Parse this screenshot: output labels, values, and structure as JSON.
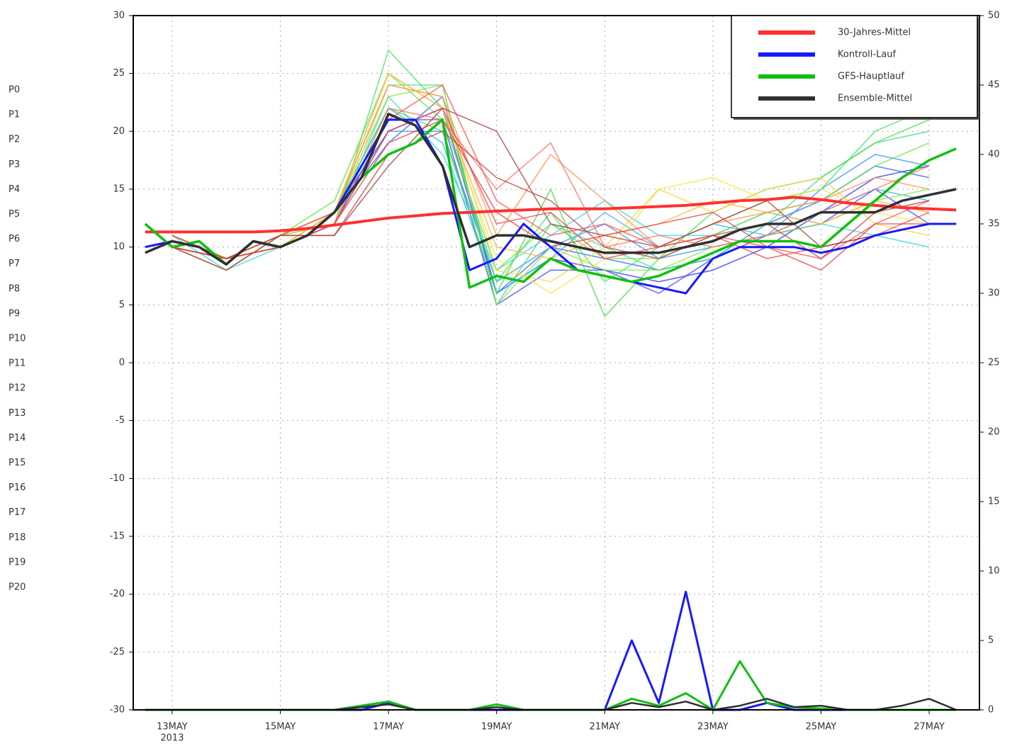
{
  "chart_data": {
    "type": "line",
    "x": [
      -0.5,
      0,
      0.5,
      1,
      1.5,
      2,
      2.5,
      3,
      3.5,
      4,
      4.5,
      5,
      5.5,
      6,
      6.5,
      7,
      7.5,
      8,
      8.5,
      9,
      9.5,
      10,
      10.5,
      11,
      11.5,
      12,
      12.5,
      13,
      13.5,
      14,
      14.5
    ],
    "xlim": [
      -0.72,
      14.93
    ],
    "xticks": [
      {
        "value": 0,
        "label": "13MAY",
        "sublabel": "2013"
      },
      {
        "value": 2,
        "label": "15MAY"
      },
      {
        "value": 4,
        "label": "17MAY"
      },
      {
        "value": 6,
        "label": "19MAY"
      },
      {
        "value": 8,
        "label": "21MAY"
      },
      {
        "value": 10,
        "label": "23MAY"
      },
      {
        "value": 12,
        "label": "25MAY"
      },
      {
        "value": 14,
        "label": "27MAY"
      }
    ],
    "ylim": [
      -30,
      30
    ],
    "yticks": [
      -30,
      -25,
      -20,
      -15,
      -10,
      -5,
      0,
      5,
      10,
      15,
      20,
      25,
      30
    ],
    "y2lim": [
      0,
      50
    ],
    "y2ticks": [
      0,
      5,
      10,
      15,
      20,
      25,
      30,
      35,
      40,
      45,
      50
    ],
    "grid": true,
    "legend": "upper right",
    "series": [
      {
        "name": "30-Jahres-Mittel",
        "color": "#ff3030",
        "width": 4,
        "values": [
          11.3,
          11.3,
          11.3,
          11.3,
          11.3,
          11.4,
          11.6,
          11.9,
          12.2,
          12.5,
          12.7,
          12.9,
          13.0,
          13.1,
          13.2,
          13.3,
          13.3,
          13.3,
          13.4,
          13.5,
          13.6,
          13.8,
          14.0,
          14.1,
          14.3,
          14.1,
          13.8,
          13.6,
          13.4,
          13.3,
          13.2
        ]
      },
      {
        "name": "Kontroll-Lauf",
        "color": "#1818ff",
        "width": 3,
        "values": [
          10,
          10.5,
          10,
          8.5,
          10.5,
          10,
          11,
          13,
          17,
          21,
          21,
          17,
          8,
          9,
          12,
          10,
          8,
          7.5,
          7,
          6.5,
          6,
          9,
          10,
          10,
          10,
          9.5,
          10,
          11,
          11.5,
          12,
          12
        ]
      },
      {
        "name": "GFS-Hauptlauf",
        "color": "#10c010",
        "width": 3.5,
        "values": [
          12,
          10,
          10.5,
          8.5,
          10.5,
          10,
          11,
          13,
          16,
          18,
          19,
          21,
          6.5,
          7.5,
          7,
          9,
          8,
          7.5,
          7,
          7.5,
          8.5,
          9.5,
          10.5,
          10.5,
          10.5,
          10,
          12,
          14,
          16,
          17.5,
          18.5
        ]
      },
      {
        "name": "Ensemble-Mittel",
        "color": "#303030",
        "width": 3.5,
        "values": [
          9.5,
          10.5,
          10,
          8.5,
          10.5,
          10,
          11,
          13,
          16,
          21.5,
          20.5,
          17,
          10,
          11,
          11,
          10.5,
          10,
          9.5,
          9.5,
          9.5,
          10,
          10.5,
          11.5,
          12,
          12,
          13,
          13,
          13,
          14,
          14.5,
          15
        ]
      },
      {
        "color": "#1818ff",
        "width": 3,
        "axis": "y2",
        "values": [
          0,
          0,
          0,
          0,
          0,
          0,
          0,
          0,
          0,
          0.5,
          0,
          0,
          0,
          0,
          0,
          0,
          0,
          0,
          5,
          0.5,
          8.5,
          0,
          0,
          0.5,
          0,
          0,
          0,
          0,
          0,
          0,
          0
        ]
      },
      {
        "color": "#10c010",
        "width": 3,
        "axis": "y2",
        "values": [
          0,
          0,
          0,
          0,
          0,
          0,
          0,
          0,
          0.3,
          0.6,
          0,
          0,
          0,
          0.4,
          0,
          0,
          0,
          0,
          0.8,
          0.3,
          1.2,
          0,
          3.5,
          0.5,
          0.2,
          0.1,
          0,
          0,
          0,
          0,
          0
        ]
      },
      {
        "color": "#303030",
        "width": 2.5,
        "axis": "y2",
        "values": [
          0,
          0,
          0,
          0,
          0,
          0,
          0,
          0,
          0.2,
          0.4,
          0,
          0,
          0,
          0.2,
          0,
          0,
          0,
          0,
          0.5,
          0.2,
          0.6,
          0,
          0.3,
          0.8,
          0.2,
          0.3,
          0,
          0,
          0.3,
          0.8,
          0
        ]
      }
    ],
    "members": {
      "x": [
        0,
        1,
        2,
        3,
        4,
        5,
        6,
        7,
        8,
        9,
        10,
        11,
        12,
        13,
        14
      ],
      "series": [
        {
          "name": "P0",
          "color": "#3030ff",
          "values": [
            10,
            9,
            11,
            13,
            20,
            22,
            6,
            9,
            8,
            7,
            8,
            10,
            13,
            16,
            17
          ]
        },
        {
          "name": "P1",
          "color": "#4040ff",
          "values": [
            10,
            9,
            10,
            12,
            21,
            21,
            5,
            8,
            8,
            6,
            9,
            11,
            12,
            15,
            12
          ]
        },
        {
          "name": "P2",
          "color": "#3060ff",
          "values": [
            11,
            9,
            10,
            13,
            19,
            23,
            6,
            10,
            9,
            8,
            9,
            12,
            14,
            17,
            16
          ]
        },
        {
          "name": "P3",
          "color": "#3090ff",
          "values": [
            10,
            9,
            11,
            12,
            20,
            20,
            7,
            10,
            12,
            9,
            10,
            11,
            15,
            18,
            17
          ]
        },
        {
          "name": "P4",
          "color": "#30b0ff",
          "values": [
            10,
            9,
            10,
            13,
            22,
            19,
            6,
            9,
            13,
            10,
            12,
            11,
            13,
            15,
            14
          ]
        },
        {
          "name": "P5",
          "color": "#30d8e0",
          "values": [
            11,
            8,
            10,
            12,
            23,
            18,
            8,
            11,
            14,
            11,
            11,
            13,
            12,
            11,
            10
          ]
        },
        {
          "name": "P6",
          "color": "#40d890",
          "values": [
            11,
            9,
            11,
            13,
            24,
            24,
            5,
            12,
            10,
            8,
            9,
            12,
            16,
            19,
            20
          ]
        },
        {
          "name": "P7",
          "color": "#40e060",
          "values": [
            10,
            8,
            11,
            12,
            27,
            22,
            7,
            13,
            7,
            10,
            12,
            14,
            15,
            20,
            22
          ]
        },
        {
          "name": "P8",
          "color": "#40e040",
          "values": [
            11,
            9,
            10,
            13,
            22,
            20,
            6,
            15,
            4,
            9,
            13,
            15,
            16,
            19,
            21
          ]
        },
        {
          "name": "P9",
          "color": "#60e040",
          "values": [
            10,
            9,
            11,
            14,
            25,
            21,
            8,
            12,
            9,
            9,
            11,
            13,
            14,
            17,
            19
          ]
        },
        {
          "name": "P10",
          "color": "#80e840",
          "values": [
            11,
            9,
            10,
            13,
            23,
            24,
            5,
            10,
            8,
            8,
            10,
            11,
            12,
            14,
            15
          ]
        },
        {
          "name": "P11",
          "color": "#f0e840",
          "values": [
            10,
            9,
            10,
            13,
            25,
            22,
            9,
            6,
            9,
            15,
            16,
            14,
            15,
            13,
            12
          ]
        },
        {
          "name": "P12",
          "color": "#ffd040",
          "values": [
            11,
            9,
            11,
            12,
            24,
            23,
            8,
            7,
            10,
            15,
            13,
            15,
            16,
            12,
            11
          ]
        },
        {
          "name": "P13",
          "color": "#ffb040",
          "values": [
            10,
            9,
            10,
            13,
            25,
            22,
            10,
            9,
            11,
            12,
            14,
            13,
            12,
            14,
            13
          ]
        },
        {
          "name": "P14",
          "color": "#ff9050",
          "values": [
            10,
            8,
            11,
            13,
            24,
            23,
            11,
            18,
            14,
            10,
            12,
            13,
            14,
            16,
            15
          ]
        },
        {
          "name": "P15",
          "color": "#ff7060",
          "values": [
            11,
            9,
            10,
            12,
            22,
            21,
            15,
            19,
            10,
            11,
            10,
            11,
            13,
            15,
            17
          ]
        },
        {
          "name": "P16",
          "color": "#ff5050",
          "values": [
            10,
            9,
            11,
            13,
            21,
            24,
            14,
            11,
            12,
            10,
            11,
            10,
            9,
            12,
            14
          ]
        },
        {
          "name": "P17",
          "color": "#f04040",
          "values": [
            10,
            9,
            10,
            12,
            20,
            22,
            12,
            13,
            9,
            10,
            11,
            9,
            10,
            11,
            13
          ]
        },
        {
          "name": "P18",
          "color": "#e04040",
          "values": [
            11,
            9,
            10,
            12,
            19,
            21,
            13,
            10,
            11,
            12,
            13,
            10,
            8,
            12,
            12
          ]
        },
        {
          "name": "P19",
          "color": "#c04040",
          "values": [
            10,
            9,
            11,
            11,
            18,
            20,
            16,
            14,
            10,
            9,
            11,
            12,
            9,
            13,
            14
          ]
        },
        {
          "name": "P20",
          "color": "#a04040",
          "values": [
            10,
            8,
            11,
            11,
            17,
            22,
            20,
            12,
            11,
            10,
            12,
            14,
            10,
            11,
            12
          ]
        }
      ]
    }
  }
}
